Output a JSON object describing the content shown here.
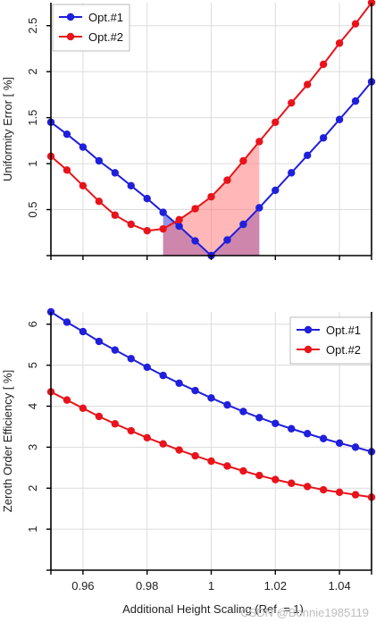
{
  "chart_data": [
    {
      "type": "line",
      "xlabel": "",
      "ylabel": "Uniformity Error [ %]",
      "xlim": [
        0.95,
        1.05
      ],
      "ylim": [
        0,
        2.75
      ],
      "x_ticks": [
        0.96,
        0.98,
        1,
        1.02,
        1.04
      ],
      "y_ticks": [
        0.5,
        1,
        1.5,
        2,
        2.5
      ],
      "y_tick_labels": [
        "0.5",
        "1",
        "1.5",
        "2",
        "2.5"
      ],
      "grid": true,
      "legend_position": "top-left",
      "x": [
        0.95,
        0.955,
        0.96,
        0.965,
        0.97,
        0.975,
        0.98,
        0.985,
        0.99,
        0.995,
        1.0,
        1.005,
        1.01,
        1.015,
        1.02,
        1.025,
        1.03,
        1.035,
        1.04,
        1.045,
        1.05
      ],
      "series": [
        {
          "name": "Opt.#1",
          "color": "#1f1fdc",
          "values": [
            1.45,
            1.32,
            1.18,
            1.03,
            0.9,
            0.76,
            0.62,
            0.47,
            0.32,
            0.16,
            0.0,
            0.17,
            0.34,
            0.52,
            0.71,
            0.9,
            1.09,
            1.28,
            1.48,
            1.68,
            1.89
          ]
        },
        {
          "name": "Opt.#2",
          "color": "#e8131b",
          "values": [
            1.08,
            0.93,
            0.76,
            0.59,
            0.44,
            0.34,
            0.27,
            0.29,
            0.39,
            0.51,
            0.64,
            0.82,
            1.03,
            1.24,
            1.45,
            1.66,
            1.86,
            2.08,
            2.31,
            2.52,
            2.75
          ]
        }
      ],
      "shaded_regions": [
        {
          "series": "Opt.#1",
          "x_range": [
            0.985,
            1.015
          ],
          "color": "#3a3ad6"
        },
        {
          "series": "Opt.#2",
          "x_range": [
            0.985,
            1.015
          ],
          "color": "#ff7b7b"
        }
      ]
    },
    {
      "type": "line",
      "xlabel": "Additional Height Scaling (Ref. = 1)",
      "ylabel": "Zeroth Order Efficiency [ %]",
      "xlim": [
        0.95,
        1.05
      ],
      "ylim": [
        0,
        6.3
      ],
      "x_ticks": [
        0.96,
        0.98,
        1,
        1.02,
        1.04
      ],
      "x_tick_labels": [
        "0.96",
        "0.98",
        "1",
        "1.02",
        "1.04"
      ],
      "y_ticks": [
        1,
        2,
        3,
        4,
        5,
        6
      ],
      "y_tick_labels": [
        "1",
        "2",
        "3",
        "4",
        "5",
        "6"
      ],
      "grid": true,
      "legend_position": "top-right",
      "x": [
        0.95,
        0.955,
        0.96,
        0.965,
        0.97,
        0.975,
        0.98,
        0.985,
        0.99,
        0.995,
        1.0,
        1.005,
        1.01,
        1.015,
        1.02,
        1.025,
        1.03,
        1.035,
        1.04,
        1.045,
        1.05
      ],
      "series": [
        {
          "name": "Opt.#1",
          "color": "#1f1fdc",
          "values": [
            6.3,
            6.05,
            5.82,
            5.58,
            5.37,
            5.16,
            4.95,
            4.75,
            4.56,
            4.38,
            4.2,
            4.03,
            3.87,
            3.72,
            3.58,
            3.45,
            3.33,
            3.21,
            3.1,
            3.0,
            2.89
          ]
        },
        {
          "name": "Opt.#2",
          "color": "#e8131b",
          "values": [
            4.35,
            4.15,
            3.95,
            3.75,
            3.57,
            3.4,
            3.23,
            3.08,
            2.93,
            2.79,
            2.66,
            2.54,
            2.42,
            2.31,
            2.21,
            2.12,
            2.04,
            1.96,
            1.9,
            1.84,
            1.78
          ]
        }
      ]
    }
  ],
  "watermark": "CSDN @Bonnie1985119"
}
